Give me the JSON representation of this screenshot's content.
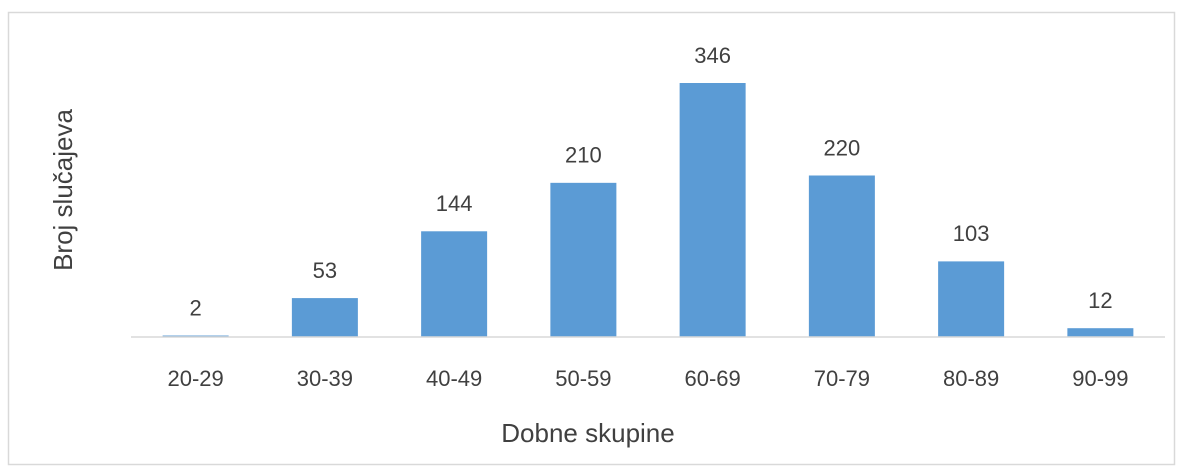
{
  "chart_data": {
    "type": "bar",
    "x_label": "Dobne skupine",
    "y_label": "Broj slučajeva",
    "categories": [
      "20-29",
      "30-39",
      "40-49",
      "50-59",
      "60-69",
      "70-79",
      "80-89",
      "90-99"
    ],
    "values": [
      2,
      53,
      144,
      210,
      346,
      220,
      103,
      12
    ],
    "color": "#5b9bd5",
    "grid": false
  }
}
